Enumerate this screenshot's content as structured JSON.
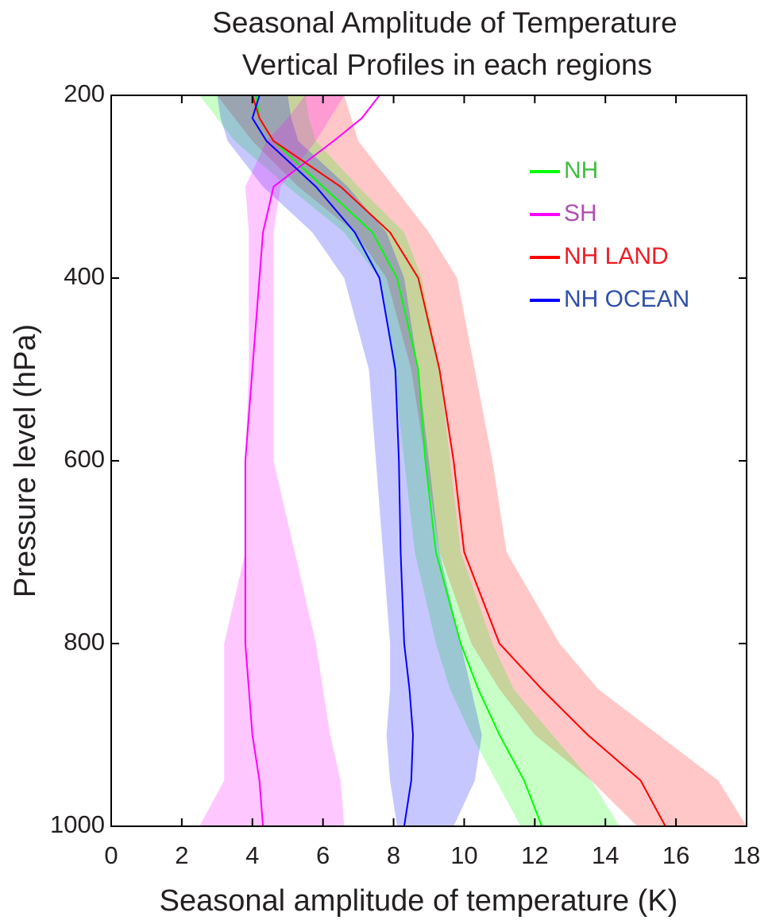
{
  "chart_data": {
    "type": "line",
    "title": [
      "Seasonal Amplitude of Temperature",
      "Vertical Profiles in each regions"
    ],
    "x_label": "Seasonal amplitude of temperature (K)",
    "y_label": "Pressure level (hPa)",
    "xlim": [
      0,
      18
    ],
    "xticks": [
      0,
      2,
      4,
      6,
      8,
      10,
      12,
      14,
      16,
      18
    ],
    "ylim": [
      200,
      1000
    ],
    "yticks": [
      200,
      400,
      600,
      800,
      1000
    ],
    "y_reversed": true,
    "y": [
      200,
      225,
      250,
      300,
      350,
      400,
      500,
      600,
      700,
      800,
      850,
      900,
      950,
      1000
    ],
    "legend": "upper right",
    "series": [
      {
        "name": "NH",
        "color": "#00ff00",
        "legend_color": "#3fbf3f",
        "values": [
          4.1,
          4.2,
          4.6,
          6.0,
          7.4,
          8.1,
          8.7,
          8.9,
          9.2,
          9.9,
          10.4,
          11.0,
          11.7,
          12.2
        ],
        "lower": [
          2.5,
          3.0,
          3.5,
          5.0,
          6.6,
          7.6,
          8.0,
          8.3,
          8.6,
          9.2,
          9.6,
          10.2,
          10.9,
          11.6
        ],
        "upper": [
          5.5,
          5.6,
          5.8,
          7.0,
          8.3,
          8.8,
          9.3,
          9.6,
          9.9,
          10.8,
          11.4,
          12.5,
          13.6,
          14.4
        ]
      },
      {
        "name": "SH",
        "color": "#ff00ff",
        "legend_color": "#b04fb0",
        "values": [
          7.6,
          7.1,
          6.3,
          4.6,
          4.3,
          4.2,
          4.0,
          3.8,
          3.8,
          3.8,
          3.9,
          4.0,
          4.2,
          4.3
        ],
        "lower": [
          5.5,
          5.0,
          4.4,
          3.8,
          3.9,
          3.9,
          3.9,
          3.8,
          3.8,
          3.2,
          3.2,
          3.2,
          3.2,
          2.5
        ],
        "upper": [
          6.6,
          6.2,
          5.8,
          4.8,
          4.6,
          4.6,
          4.6,
          4.6,
          5.2,
          5.8,
          6.0,
          6.2,
          6.5,
          6.6
        ]
      },
      {
        "name": "NH LAND",
        "color": "#ff0000",
        "legend_color": "#ee1c24",
        "values": [
          4.0,
          4.2,
          4.6,
          6.5,
          7.9,
          8.7,
          9.3,
          9.7,
          10.0,
          11.0,
          12.2,
          13.5,
          15.0,
          15.7
        ],
        "lower": [
          3.0,
          3.5,
          4.0,
          5.3,
          6.9,
          7.8,
          8.5,
          8.9,
          9.3,
          10.2,
          11.0,
          12.0,
          13.6,
          14.9
        ],
        "upper": [
          6.6,
          6.8,
          7.0,
          8.0,
          9.0,
          9.8,
          10.3,
          10.8,
          11.2,
          12.7,
          13.8,
          15.5,
          17.2,
          18.0
        ]
      },
      {
        "name": "NH OCEAN",
        "color": "#0000ff",
        "legend_color": "#3050a8",
        "values": [
          4.2,
          4.0,
          4.4,
          5.8,
          6.9,
          7.6,
          8.05,
          8.15,
          8.2,
          8.3,
          8.45,
          8.55,
          8.5,
          8.3
        ],
        "lower": [
          3.0,
          3.1,
          3.3,
          4.3,
          5.7,
          6.6,
          7.3,
          7.5,
          7.7,
          7.9,
          7.9,
          7.8,
          7.9,
          8.1
        ],
        "upper": [
          5.0,
          5.1,
          5.3,
          6.7,
          7.8,
          8.3,
          8.7,
          9.0,
          9.3,
          9.9,
          10.2,
          10.5,
          10.3,
          9.7
        ]
      }
    ]
  }
}
